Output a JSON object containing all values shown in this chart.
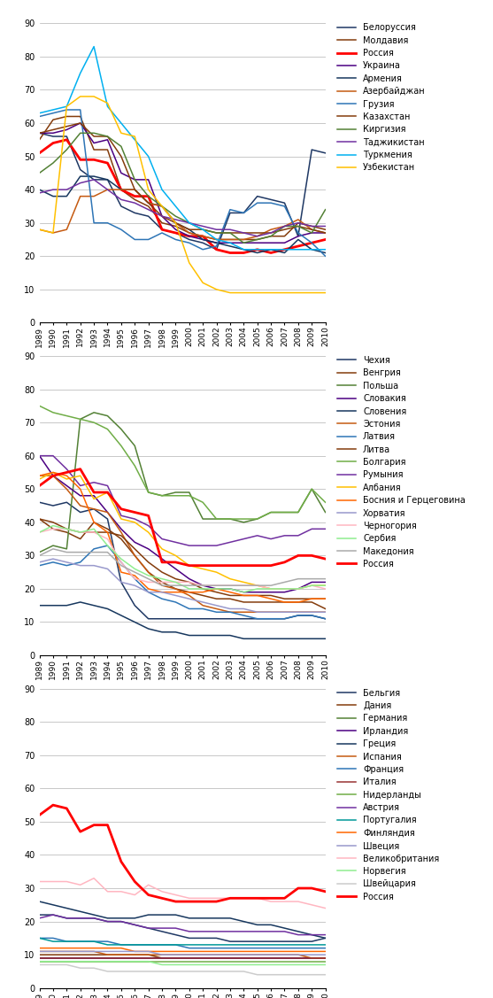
{
  "years": [
    1989,
    1990,
    1991,
    1992,
    1993,
    1994,
    1995,
    1996,
    1997,
    1998,
    1999,
    2000,
    2001,
    2002,
    2003,
    2004,
    2005,
    2006,
    2007,
    2008,
    2009,
    2010
  ],
  "chart1": {
    "series": {
      "Белоруссия": [
        57,
        56,
        56,
        46,
        43,
        43,
        35,
        33,
        32,
        28,
        27,
        25,
        24,
        22,
        33,
        33,
        38,
        37,
        36,
        26,
        52,
        51
      ],
      "Молдавия": [
        55,
        61,
        62,
        62,
        52,
        52,
        40,
        37,
        35,
        30,
        29,
        27,
        26,
        25,
        25,
        25,
        25,
        26,
        26,
        30,
        29,
        28
      ],
      "Россия": [
        51,
        54,
        55,
        49,
        49,
        48,
        40,
        38,
        38,
        28,
        27,
        26,
        26,
        22,
        21,
        21,
        22,
        21,
        22,
        23,
        24,
        25
      ],
      "Украина": [
        57,
        57,
        58,
        60,
        54,
        55,
        45,
        43,
        43,
        32,
        28,
        26,
        25,
        24,
        24,
        24,
        24,
        24,
        24,
        26,
        27,
        27
      ],
      "Армения": [
        40,
        38,
        38,
        44,
        44,
        43,
        40,
        40,
        36,
        35,
        30,
        28,
        25,
        24,
        23,
        22,
        21,
        22,
        21,
        25,
        22,
        21
      ],
      "Азербайджан": [
        28,
        27,
        28,
        38,
        38,
        40,
        40,
        40,
        36,
        35,
        30,
        27,
        26,
        25,
        25,
        25,
        26,
        28,
        29,
        31,
        28,
        27
      ],
      "Грузия": [
        62,
        63,
        64,
        64,
        30,
        30,
        28,
        25,
        25,
        27,
        25,
        24,
        22,
        23,
        34,
        33,
        36,
        36,
        35,
        27,
        24,
        20
      ],
      "Казахстан": [
        57,
        58,
        59,
        60,
        56,
        56,
        50,
        40,
        36,
        32,
        30,
        28,
        28,
        27,
        27,
        27,
        27,
        27,
        28,
        29,
        28,
        27
      ],
      "Киргизия": [
        45,
        48,
        52,
        57,
        57,
        56,
        53,
        43,
        38,
        35,
        32,
        30,
        28,
        27,
        27,
        24,
        25,
        26,
        29,
        29,
        27,
        34
      ],
      "Таджикистан": [
        39,
        40,
        40,
        42,
        43,
        40,
        37,
        36,
        34,
        32,
        31,
        30,
        29,
        28,
        28,
        27,
        26,
        27,
        29,
        30,
        29,
        29
      ],
      "Туркмения": [
        63,
        64,
        65,
        75,
        83,
        65,
        60,
        55,
        50,
        40,
        35,
        30,
        28,
        25,
        24,
        22,
        22,
        22,
        22,
        22,
        22,
        22
      ],
      "Узбекистан": [
        28,
        27,
        65,
        68,
        68,
        66,
        57,
        56,
        40,
        35,
        30,
        18,
        12,
        10,
        9,
        9,
        9,
        9,
        9,
        9,
        9,
        9
      ]
    },
    "colors": {
      "Белоруссия": "#1F3864",
      "Молдавия": "#843C0C",
      "Россия": "#FF0000",
      "Украина": "#4B0082",
      "Армения": "#17375E",
      "Азербайджан": "#C55A11",
      "Грузия": "#2E75B6",
      "Казахстан": "#843C0C",
      "Киргизия": "#538135",
      "Таджикистан": "#7030A0",
      "Туркмения": "#00B0F0",
      "Узбекистан": "#FFC000"
    }
  },
  "chart2": {
    "series": {
      "Чехия": [
        46,
        45,
        46,
        43,
        44,
        41,
        22,
        15,
        11,
        11,
        11,
        11,
        11,
        11,
        11,
        11,
        11,
        11,
        11,
        12,
        12,
        11
      ],
      "Венгрия": [
        41,
        38,
        37,
        35,
        40,
        38,
        35,
        30,
        25,
        22,
        20,
        19,
        18,
        17,
        17,
        16,
        16,
        16,
        16,
        16,
        16,
        14
      ],
      "Польша": [
        31,
        33,
        32,
        71,
        73,
        72,
        68,
        63,
        49,
        48,
        49,
        49,
        41,
        41,
        41,
        40,
        41,
        43,
        43,
        43,
        50,
        43
      ],
      "Словакия": [
        60,
        54,
        51,
        48,
        48,
        43,
        38,
        34,
        32,
        29,
        26,
        23,
        21,
        20,
        20,
        19,
        19,
        19,
        19,
        20,
        22,
        22
      ],
      "Словения": [
        15,
        15,
        15,
        16,
        15,
        14,
        12,
        10,
        8,
        7,
        7,
        6,
        6,
        6,
        6,
        5,
        5,
        5,
        5,
        5,
        5,
        5
      ],
      "Эстония": [
        54,
        54,
        50,
        45,
        44,
        43,
        37,
        30,
        25,
        21,
        20,
        18,
        15,
        14,
        13,
        13,
        13,
        13,
        13,
        13,
        13,
        13
      ],
      "Латвия": [
        27,
        28,
        27,
        28,
        32,
        33,
        28,
        23,
        19,
        17,
        16,
        14,
        14,
        13,
        13,
        12,
        11,
        11,
        11,
        12,
        12,
        11
      ],
      "Литва": [
        41,
        40,
        38,
        37,
        37,
        37,
        36,
        32,
        28,
        25,
        23,
        22,
        20,
        19,
        18,
        18,
        18,
        18,
        17,
        17,
        17,
        17
      ],
      "Болгария": [
        75,
        73,
        72,
        71,
        70,
        68,
        63,
        57,
        49,
        48,
        48,
        48,
        46,
        41,
        41,
        41,
        41,
        43,
        43,
        43,
        50,
        46
      ],
      "Румыния": [
        60,
        60,
        56,
        51,
        52,
        51,
        42,
        41,
        39,
        35,
        34,
        33,
        33,
        33,
        34,
        35,
        36,
        35,
        36,
        36,
        38,
        38
      ],
      "Албания": [
        53,
        55,
        53,
        54,
        47,
        49,
        41,
        40,
        37,
        32,
        30,
        27,
        26,
        25,
        23,
        22,
        21,
        20,
        20,
        20,
        21,
        21
      ],
      "Босния и Герцеговина": [
        54,
        55,
        54,
        50,
        40,
        37,
        25,
        24,
        20,
        19,
        19,
        19,
        19,
        20,
        19,
        18,
        18,
        17,
        16,
        16,
        17,
        17
      ],
      "Хорватия": [
        28,
        29,
        28,
        27,
        27,
        26,
        22,
        21,
        19,
        19,
        18,
        17,
        16,
        15,
        14,
        14,
        13,
        13,
        13,
        13,
        13,
        13
      ],
      "Черногория": [
        37,
        38,
        38,
        37,
        37,
        35,
        28,
        23,
        22,
        22,
        22,
        22,
        21,
        21,
        21,
        21,
        21,
        20,
        20,
        20,
        21,
        20
      ],
      "Сербия": [
        37,
        39,
        38,
        37,
        38,
        33,
        29,
        26,
        24,
        23,
        22,
        20,
        20,
        20,
        20,
        19,
        20,
        20,
        20,
        20,
        21,
        21
      ],
      "Македония": [
        30,
        32,
        31,
        31,
        31,
        31,
        27,
        25,
        23,
        21,
        21,
        21,
        21,
        21,
        21,
        21,
        21,
        21,
        22,
        23,
        23,
        23
      ],
      "Россия": [
        51,
        54,
        55,
        56,
        49,
        49,
        44,
        43,
        42,
        28,
        28,
        27,
        27,
        27,
        27,
        27,
        27,
        27,
        28,
        30,
        30,
        29
      ]
    },
    "colors": {
      "Чехия": "#1F3864",
      "Венгрия": "#843C0C",
      "Польша": "#538135",
      "Словакия": "#4B0082",
      "Словения": "#17375E",
      "Эстония": "#C55A11",
      "Латвия": "#2E75B6",
      "Литва": "#843C0C",
      "Болгария": "#70AD47",
      "Румыния": "#7030A0",
      "Албания": "#FFC000",
      "Босния и Герцеговина": "#FF6600",
      "Хорватия": "#9999CC",
      "Черногория": "#FFB6C1",
      "Сербия": "#90EE90",
      "Македония": "#AAAAAA",
      "Россия": "#FF0000"
    }
  },
  "chart3": {
    "series": {
      "Бельгия": [
        22,
        22,
        21,
        21,
        21,
        20,
        20,
        19,
        18,
        17,
        16,
        15,
        15,
        15,
        14,
        14,
        14,
        14,
        14,
        14,
        14,
        15
      ],
      "Дания": [
        10,
        10,
        10,
        10,
        10,
        10,
        10,
        10,
        10,
        9,
        9,
        9,
        9,
        9,
        9,
        9,
        9,
        9,
        9,
        9,
        9,
        9
      ],
      "Германия": [
        9,
        9,
        9,
        9,
        9,
        9,
        9,
        9,
        9,
        9,
        9,
        9,
        9,
        9,
        9,
        9,
        9,
        9,
        9,
        9,
        9,
        9
      ],
      "Ирландия": [
        9,
        9,
        9,
        9,
        9,
        9,
        9,
        9,
        9,
        9,
        9,
        9,
        9,
        9,
        9,
        9,
        9,
        9,
        9,
        9,
        9,
        9
      ],
      "Греция": [
        26,
        25,
        24,
        23,
        22,
        21,
        21,
        21,
        22,
        22,
        22,
        21,
        21,
        21,
        21,
        20,
        19,
        19,
        18,
        17,
        16,
        15
      ],
      "Испания": [
        11,
        11,
        11,
        11,
        11,
        10,
        10,
        10,
        10,
        10,
        10,
        10,
        10,
        10,
        10,
        10,
        10,
        10,
        10,
        10,
        9,
        9
      ],
      "Франция": [
        15,
        15,
        14,
        14,
        14,
        14,
        13,
        13,
        13,
        13,
        13,
        12,
        12,
        12,
        12,
        12,
        12,
        12,
        12,
        12,
        12,
        12
      ],
      "Италия": [
        9,
        9,
        9,
        9,
        9,
        9,
        9,
        9,
        9,
        9,
        9,
        9,
        9,
        9,
        9,
        9,
        9,
        9,
        9,
        9,
        9,
        9
      ],
      "Нидерланды": [
        8,
        8,
        8,
        8,
        8,
        8,
        8,
        8,
        8,
        8,
        8,
        8,
        8,
        8,
        8,
        8,
        8,
        8,
        8,
        8,
        8,
        8
      ],
      "Австрия": [
        21,
        22,
        21,
        21,
        21,
        20,
        20,
        19,
        18,
        18,
        18,
        17,
        17,
        17,
        17,
        17,
        17,
        17,
        17,
        16,
        16,
        16
      ],
      "Португалия": [
        15,
        14,
        14,
        14,
        14,
        13,
        13,
        13,
        13,
        13,
        13,
        13,
        13,
        13,
        13,
        13,
        13,
        13,
        13,
        13,
        13,
        13
      ],
      "Финляндия": [
        12,
        12,
        12,
        12,
        12,
        12,
        12,
        11,
        11,
        11,
        11,
        11,
        11,
        11,
        11,
        11,
        11,
        11,
        11,
        11,
        11,
        11
      ],
      "Швеция": [
        11,
        11,
        11,
        11,
        11,
        11,
        11,
        11,
        11,
        10,
        10,
        10,
        10,
        10,
        10,
        10,
        10,
        10,
        10,
        10,
        10,
        10
      ],
      "Великобритания": [
        32,
        32,
        32,
        31,
        33,
        29,
        29,
        28,
        31,
        29,
        28,
        27,
        27,
        27,
        27,
        27,
        27,
        26,
        26,
        26,
        25,
        24
      ],
      "Норвегия": [
        8,
        8,
        8,
        8,
        8,
        8,
        8,
        8,
        8,
        7,
        7,
        7,
        7,
        7,
        7,
        7,
        7,
        7,
        7,
        7,
        7,
        7
      ],
      "Швейцария": [
        7,
        7,
        7,
        6,
        6,
        5,
        5,
        5,
        5,
        5,
        5,
        5,
        5,
        5,
        5,
        5,
        4,
        4,
        4,
        4,
        4,
        4
      ],
      "Россия": [
        52,
        55,
        54,
        47,
        49,
        49,
        38,
        32,
        28,
        27,
        26,
        26,
        26,
        26,
        27,
        27,
        27,
        27,
        27,
        30,
        30,
        29
      ]
    },
    "colors": {
      "Бельгия": "#1F3864",
      "Дания": "#843C0C",
      "Германия": "#538135",
      "Ирландия": "#4B0082",
      "Греция": "#17375E",
      "Испания": "#C55A11",
      "Франция": "#2E75B6",
      "Италия": "#993333",
      "Нидерланды": "#70AD47",
      "Австрия": "#7030A0",
      "Португалия": "#009999",
      "Финляндия": "#FF6600",
      "Швеция": "#9999CC",
      "Великобритания": "#FFB6C1",
      "Норвегия": "#90EE90",
      "Швейцария": "#CCCCCC",
      "Россия": "#FF0000"
    }
  },
  "ylim": [
    0,
    90
  ],
  "yticks": [
    0,
    10,
    20,
    30,
    40,
    50,
    60,
    70,
    80,
    90
  ]
}
